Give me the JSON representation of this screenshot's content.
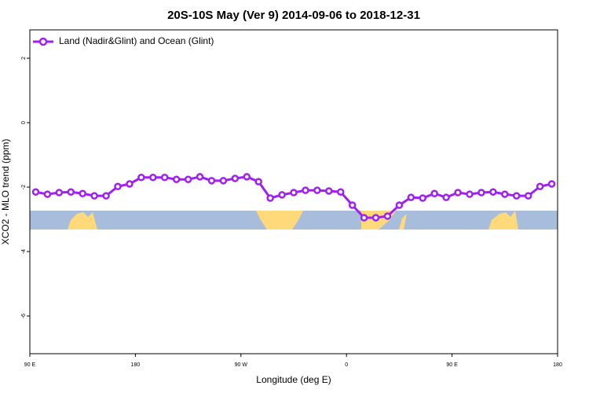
{
  "chart_data": {
    "type": "line",
    "title": "20S-10S May (Ver 9)   2014-09-06 to 2018-12-31",
    "x_label": "Longitude (deg E)",
    "y_label": "XCO2 - MLO trend (ppm)",
    "x": [
      95,
      105,
      115,
      125,
      135,
      145,
      155,
      165,
      175,
      185,
      195,
      205,
      215,
      225,
      235,
      245,
      255,
      265,
      275,
      285,
      295,
      305,
      315,
      325,
      335,
      345,
      355,
      365,
      375,
      385,
      395,
      405,
      415,
      425,
      435,
      445,
      455,
      465,
      475,
      485,
      495,
      505,
      515,
      525,
      535
    ],
    "series": [
      {
        "name": "Land (Nadir&Glint) and Ocean (Glint)",
        "color": "#a020f0",
        "values": [
          -2.15,
          -2.22,
          -2.17,
          -2.15,
          -2.2,
          -2.27,
          -2.27,
          -1.98,
          -1.9,
          -1.7,
          -1.7,
          -1.7,
          -1.76,
          -1.76,
          -1.68,
          -1.8,
          -1.8,
          -1.73,
          -1.68,
          -1.83,
          -2.34,
          -2.24,
          -2.17,
          -2.1,
          -2.1,
          -2.12,
          -2.15,
          -2.56,
          -2.95,
          -2.95,
          -2.9,
          -2.56,
          -2.32,
          -2.34,
          -2.2,
          -2.32,
          -2.17,
          -2.22,
          -2.17,
          -2.15,
          -2.22,
          -2.27,
          -2.27,
          -1.98,
          -1.9
        ]
      }
    ],
    "xlim": [
      90,
      540
    ],
    "ylim": [
      -7.17,
      2.88
    ],
    "xticks": [
      {
        "value": 90,
        "label": "90 E"
      },
      {
        "value": 180,
        "label": "180"
      },
      {
        "value": 270,
        "label": "90 W"
      },
      {
        "value": 360,
        "label": "0"
      },
      {
        "value": 450,
        "label": "90 E"
      },
      {
        "value": 540,
        "label": "180"
      }
    ],
    "yticks": [
      2,
      0,
      -2,
      -4,
      -6
    ],
    "legend": "top-left"
  }
}
